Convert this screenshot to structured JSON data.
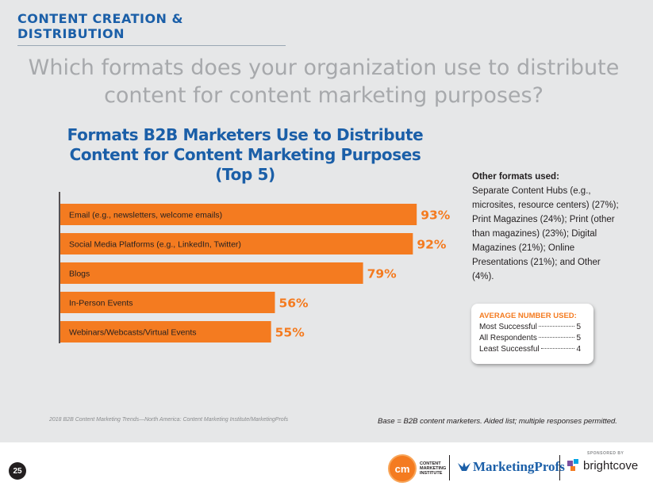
{
  "header": {
    "section_title": "CONTENT CREATION & DISTRIBUTION"
  },
  "question": "Which formats does your organization use to distribute content for content marketing purposes?",
  "chart_data": {
    "type": "bar",
    "orientation": "horizontal",
    "title": "Formats B2B Marketers Use to Distribute Content for Content Marketing Purposes (Top 5)",
    "categories": [
      "Email (e.g., newsletters, welcome emails)",
      "Social Media Platforms (e.g., LinkedIn, Twitter)",
      "Blogs",
      "In-Person Events",
      "Webinars/Webcasts/Virtual Events"
    ],
    "values": [
      93,
      92,
      79,
      56,
      55
    ],
    "value_labels": [
      "93%",
      "92%",
      "79%",
      "56%",
      "55%"
    ],
    "unit": "%",
    "xlim": [
      0,
      100
    ],
    "bar_color": "#f47b20",
    "value_label_color": "#f47b20",
    "grid": false
  },
  "other_formats": {
    "title": "Other formats used:",
    "text": "Separate Content Hubs (e.g., microsites, resource centers) (27%); Print Magazines (24%); Print (other than magazines) (23%); Digital Magazines (21%); Online Presentations (21%); and Other (4%)."
  },
  "average_box": {
    "title": "AVERAGE NUMBER USED:",
    "rows": [
      {
        "label": "Most Successful",
        "value": "5"
      },
      {
        "label": "All Respondents",
        "value": "5"
      },
      {
        "label": "Least Successful",
        "value": "4"
      }
    ]
  },
  "footer": {
    "source": "2018 B2B Content Marketing Trends—North America: Content Marketing Institute/MarketingProfs",
    "base_note": "Base = B2B content marketers. Aided list; multiple responses permitted.",
    "page_number": "25",
    "cmi_logo": {
      "mark": "cm",
      "text": "CONTENT MARKETING INSTITUTE"
    },
    "marketingprofs_logo": "MarketingProfs",
    "sponsor_label": "SPONSORED BY",
    "sponsor_name": "brightcove"
  },
  "colors": {
    "brand_blue": "#1b5fa8",
    "accent_orange": "#f47b20",
    "background": "#e6e7e8",
    "question_gray": "#a7a9ac"
  }
}
